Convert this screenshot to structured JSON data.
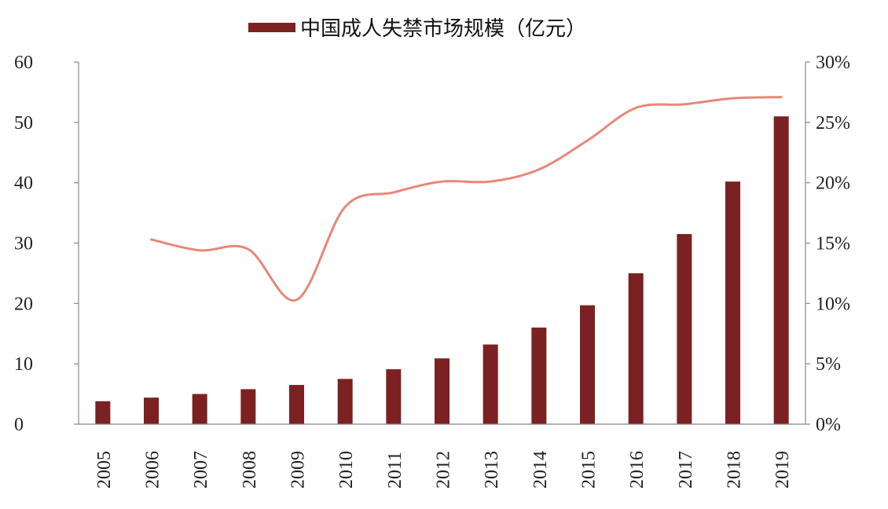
{
  "chart_data": {
    "type": "bar",
    "legend": {
      "entries": [
        {
          "name": "中国成人失禁市场规模（亿元）",
          "color": "#7B2121"
        }
      ],
      "placement": "top-center"
    },
    "categories": [
      "2005",
      "2006",
      "2007",
      "2008",
      "2009",
      "2010",
      "2011",
      "2012",
      "2013",
      "2014",
      "2015",
      "2016",
      "2017",
      "2018",
      "2019"
    ],
    "series": [
      {
        "name": "中国成人失禁市场规模（亿元）",
        "type": "bar",
        "axis": "left",
        "color": "#7B2121",
        "values": [
          3.8,
          4.4,
          5.0,
          5.8,
          6.5,
          7.5,
          9.1,
          10.9,
          13.2,
          16.0,
          19.7,
          25.0,
          31.5,
          40.2,
          51.0
        ]
      },
      {
        "type": "line",
        "axis": "right",
        "color": "#E8877A",
        "values": [
          null,
          0.153,
          0.144,
          0.145,
          0.103,
          0.18,
          0.192,
          0.201,
          0.201,
          0.211,
          0.235,
          0.262,
          0.265,
          0.27,
          0.271
        ]
      }
    ],
    "y_left": {
      "lim": [
        0,
        60
      ],
      "ticks": [
        0,
        10,
        20,
        30,
        40,
        50,
        60
      ],
      "tick_labels": [
        "0",
        "10",
        "20",
        "30",
        "40",
        "50",
        "60"
      ]
    },
    "y_right": {
      "lim": [
        0,
        0.3
      ],
      "ticks": [
        0,
        0.05,
        0.1,
        0.15,
        0.2,
        0.25,
        0.3
      ],
      "tick_labels": [
        "0%",
        "5%",
        "10%",
        "15%",
        "20%",
        "25%",
        "30%"
      ]
    },
    "x_tick_rotation": "vertical",
    "grid": false
  }
}
